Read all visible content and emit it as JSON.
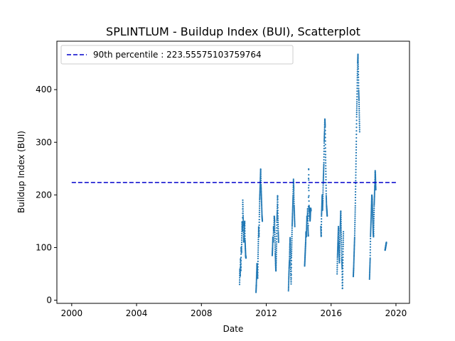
{
  "chart_data": {
    "type": "scatter",
    "title": "SPLINTLUM - Buildup Index (BUI), Scatterplot",
    "xlabel": "Date",
    "ylabel": "Buildup Index (BUI)",
    "xlim": [
      "1999-02-01",
      "2020-11-01"
    ],
    "ylim": [
      -6,
      492
    ],
    "x_ticks": [
      "2000",
      "2004",
      "2008",
      "2012",
      "2016",
      "2020"
    ],
    "y_ticks": [
      0,
      100,
      200,
      300,
      400
    ],
    "grid": false,
    "legend_position": "upper-left",
    "reference_line": {
      "label": "90th percentile : 223.55575103759764",
      "value": 223.55575103759764,
      "x_range": [
        "2000-01-01",
        "2020-01-01"
      ],
      "color": "#0000cc",
      "style": "dashed"
    },
    "series": [
      {
        "color": "#1f77b4",
        "seasons": [
          {
            "start": "2010-05-10",
            "end": "2010-10-01",
            "values": [
              30,
              60,
              45,
              80,
              55,
              100,
              90,
              120,
              150,
              130,
              190,
              160,
              140,
              110,
              120,
              140,
              150,
              115,
              100,
              85,
              80
            ]
          },
          {
            "start": "2011-05-15",
            "end": "2011-10-05",
            "values": [
              15,
              30,
              50,
              70,
              60,
              40,
              80,
              110,
              140,
              120,
              160,
              190,
              210,
              230,
              250,
              220,
              200,
              180,
              160,
              150
            ]
          },
          {
            "start": "2012-05-15",
            "end": "2012-10-05",
            "values": [
              85,
              100,
              120,
              110,
              140,
              130,
              160,
              150,
              120,
              90,
              70,
              55,
              80,
              110,
              150,
              170,
              200,
              160,
              130,
              110
            ]
          },
          {
            "start": "2013-05-15",
            "end": "2013-10-05",
            "values": [
              18,
              40,
              60,
              75,
              100,
              120,
              90,
              60,
              30,
              80,
              110,
              140,
              160,
              180,
              200,
              230,
              210,
              180,
              160,
              140
            ]
          },
          {
            "start": "2014-05-15",
            "end": "2014-10-05",
            "values": [
              65,
              80,
              95,
              110,
              130,
              120,
              140,
              160,
              150,
              175,
              140,
              120,
              255,
              180,
              170,
              165,
              150,
              160,
              175,
              170
            ]
          },
          {
            "start": "2015-05-15",
            "end": "2015-10-05",
            "values": [
              140,
              120,
              160,
              180,
              200,
              170,
              190,
              220,
              240,
              260,
              300,
              320,
              345,
              330,
              280,
              240,
              200,
              180,
              170,
              160
            ]
          },
          {
            "start": "2016-05-15",
            "end": "2016-10-05",
            "values": [
              50,
              80,
              100,
              120,
              140,
              110,
              90,
              70,
              100,
              130,
              150,
              170,
              140,
              110,
              80,
              60,
              20,
              60,
              100,
              130
            ]
          },
          {
            "start": "2017-05-15",
            "end": "2017-10-05",
            "values": [
              45,
              60,
              80,
              100,
              120,
              150,
              180,
              220,
              260,
              300,
              350,
              380,
              420,
              450,
              468,
              440,
              400,
              380,
              350,
              320
            ]
          },
          {
            "start": "2018-05-15",
            "end": "2018-10-05",
            "values": [
              40,
              60,
              80,
              120,
              140,
              160,
              180,
              200,
              190,
              170,
              150,
              130,
              120,
              150,
              180,
              200,
              220,
              246,
              230,
              210
            ]
          },
          {
            "start": "2019-05-01",
            "end": "2019-05-31",
            "values": [
              95,
              100,
              105,
              110
            ]
          }
        ]
      }
    ]
  }
}
